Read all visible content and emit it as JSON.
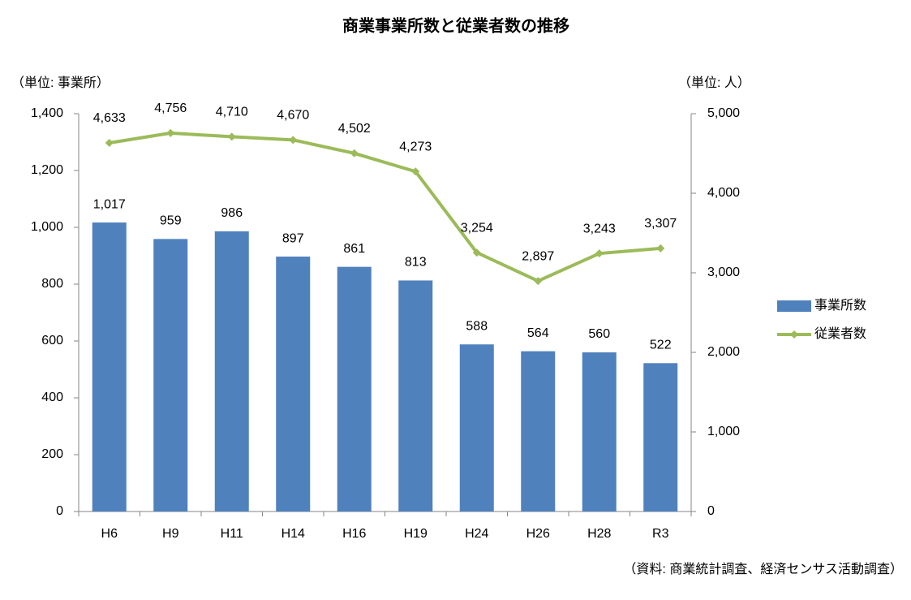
{
  "chart_data": {
    "type": "bar",
    "title": "商業事業所数と従業者数の推移",
    "ylabel": "（単位: 事業所）",
    "y2label": "（単位: 人）",
    "source": "（資料: 商業統計調査、経済センサス活動調査）",
    "categories": [
      "H6",
      "H9",
      "H11",
      "H14",
      "H16",
      "H19",
      "H24",
      "H26",
      "H28",
      "R3"
    ],
    "series": [
      {
        "name": "事業所数",
        "type": "bar",
        "color": "#4f81bd",
        "values": [
          1017,
          959,
          986,
          897,
          861,
          813,
          588,
          564,
          560,
          522
        ],
        "value_labels": [
          "1,017",
          "959",
          "986",
          "897",
          "861",
          "813",
          "588",
          "564",
          "560",
          "522"
        ]
      },
      {
        "name": "従業者数",
        "type": "line",
        "axis": "y2",
        "color": "#9bbb59",
        "values": [
          4633,
          4756,
          4710,
          4670,
          4502,
          4273,
          3254,
          2897,
          3243,
          3307
        ],
        "value_labels": [
          "4,633",
          "4,756",
          "4,710",
          "4,670",
          "4,502",
          "4,273",
          "3,254",
          "2,897",
          "3,243",
          "3,307"
        ]
      }
    ],
    "ylim": [
      0,
      1400
    ],
    "yticks": [
      0,
      200,
      400,
      600,
      800,
      {
        "value": 1000,
        "label": "1,000"
      },
      {
        "value": 1200,
        "label": "1,200"
      },
      {
        "value": 1400,
        "label": "1,400"
      }
    ],
    "y2lim": [
      0,
      5000
    ],
    "y2ticks": [
      0,
      {
        "value": 1000,
        "label": "1,000"
      },
      {
        "value": 2000,
        "label": "2,000"
      },
      {
        "value": 3000,
        "label": "3,000"
      },
      {
        "value": 4000,
        "label": "4,000"
      },
      {
        "value": 5000,
        "label": "5,000"
      }
    ],
    "grid": false,
    "legend": "right"
  }
}
